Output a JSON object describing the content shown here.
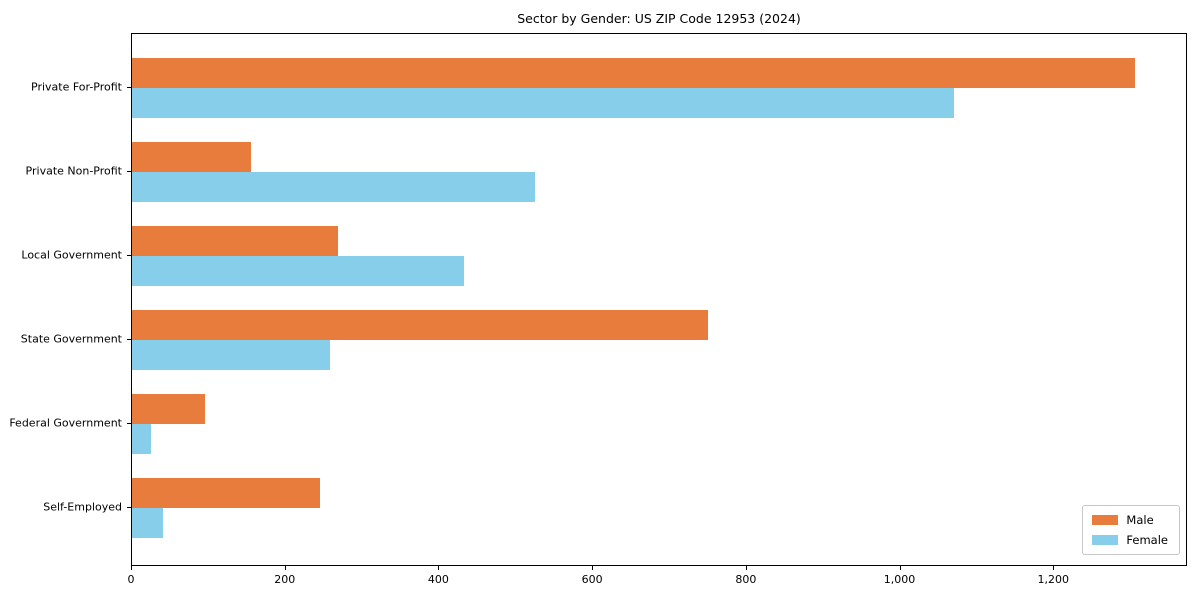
{
  "title": "Sector by Gender: US ZIP Code 12953 (2024)",
  "chart_data": {
    "type": "bar",
    "orientation": "horizontal",
    "title": "Sector by Gender: US ZIP Code 12953 (2024)",
    "xlabel": "",
    "ylabel": "",
    "categories": [
      "Private For-Profit",
      "Private Non-Profit",
      "Local Government",
      "State Government",
      "Federal Government",
      "Self-Employed"
    ],
    "series": [
      {
        "name": "Male",
        "color": "#e87c3c",
        "values": [
          1305,
          155,
          268,
          750,
          95,
          245
        ]
      },
      {
        "name": "Female",
        "color": "#87ceeb",
        "values": [
          1070,
          525,
          432,
          258,
          25,
          40
        ]
      }
    ],
    "xlim": [
      0,
      1374
    ],
    "x_ticks": [
      0,
      200,
      400,
      600,
      800,
      1000,
      1200
    ],
    "x_tick_labels": [
      "0",
      "200",
      "400",
      "600",
      "800",
      "1,000",
      "1,200"
    ],
    "grid": false,
    "legend": {
      "position": "lower right",
      "entries": [
        "Male",
        "Female"
      ]
    }
  }
}
